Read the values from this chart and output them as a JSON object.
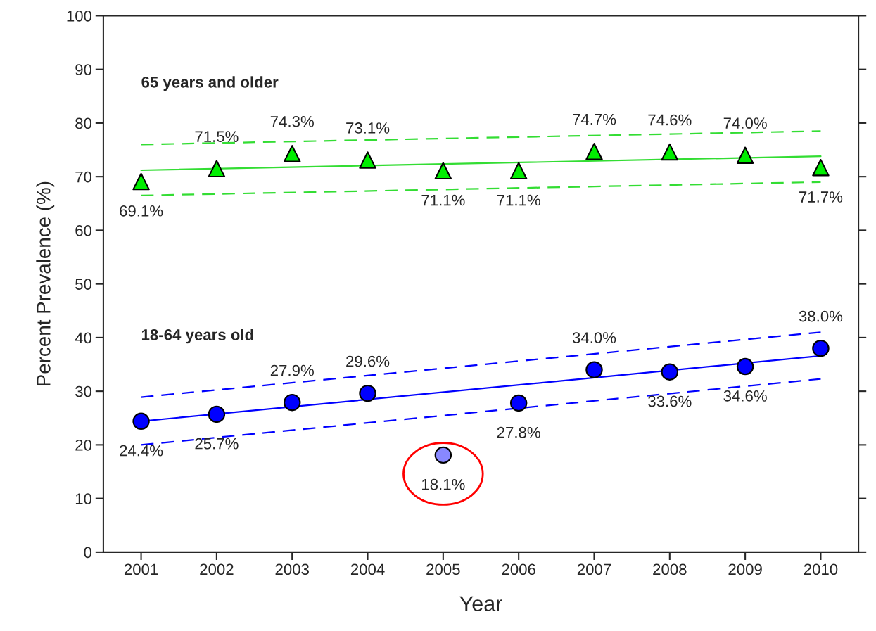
{
  "chart_data": {
    "type": "scatter",
    "xlabel": "Year",
    "ylabel": "Percent Prevalence (%)",
    "x": [
      2001,
      2002,
      2003,
      2004,
      2005,
      2006,
      2007,
      2008,
      2009,
      2010
    ],
    "xlim": [
      2000.5,
      2010.5
    ],
    "xticks": [
      2001,
      2002,
      2003,
      2004,
      2005,
      2006,
      2007,
      2008,
      2009,
      2010
    ],
    "annotations": [
      "65 years and older",
      "18-64 years old"
    ],
    "ylim": [
      0,
      100
    ],
    "yticks": [
      0,
      10,
      20,
      30,
      40,
      50,
      60,
      70,
      80,
      90,
      100
    ],
    "grid": false,
    "legend": false,
    "series": [
      {
        "type": "line",
        "color": "#33dd33",
        "line_style": "solid",
        "x": [
          2001,
          2010
        ],
        "values": [
          71.2,
          73.8
        ]
      },
      {
        "type": "line",
        "color": "#33dd33",
        "line_style": "dashed",
        "x": [
          2001,
          2010
        ],
        "values": [
          76.0,
          78.5
        ]
      },
      {
        "type": "line",
        "color": "#33dd33",
        "line_style": "dashed",
        "x": [
          2001,
          2010
        ],
        "values": [
          66.5,
          69.0
        ]
      },
      {
        "color": "#00ee00",
        "marker": "triangle",
        "values": [
          69.1,
          71.5,
          74.3,
          73.1,
          71.1,
          71.1,
          74.7,
          74.6,
          74.0,
          71.7
        ],
        "value_labels": [
          "69.1%",
          "71.5%",
          "74.3%",
          "73.1%",
          "71.1%",
          "71.1%",
          "74.7%",
          "74.6%",
          "74.0%",
          "71.7%"
        ]
      },
      {
        "type": "line",
        "color": "#0000ff",
        "line_style": "solid",
        "x": [
          2001,
          2010
        ],
        "values": [
          24.4,
          36.6
        ]
      },
      {
        "type": "line",
        "color": "#0000ff",
        "line_style": "dashed",
        "x": [
          2001,
          2010
        ],
        "values": [
          28.9,
          41.0
        ]
      },
      {
        "type": "line",
        "color": "#0000ff",
        "line_style": "dashed",
        "x": [
          2001,
          2010
        ],
        "values": [
          20.0,
          32.3
        ]
      },
      {
        "color": "#0000ff",
        "marker": "circle",
        "values": [
          24.4,
          25.7,
          27.9,
          29.6,
          null,
          27.8,
          34.0,
          33.6,
          34.6,
          38.0
        ],
        "value_labels": [
          "24.4%",
          "25.7%",
          "27.9%",
          "29.6%",
          null,
          "27.8%",
          "34.0%",
          "33.6%",
          "34.6%",
          "38.0%"
        ]
      },
      {
        "color": "#8888ff",
        "marker": "circle",
        "x": [
          2005
        ],
        "values": [
          18.1
        ],
        "value_labels": [
          "18.1%"
        ]
      }
    ]
  }
}
